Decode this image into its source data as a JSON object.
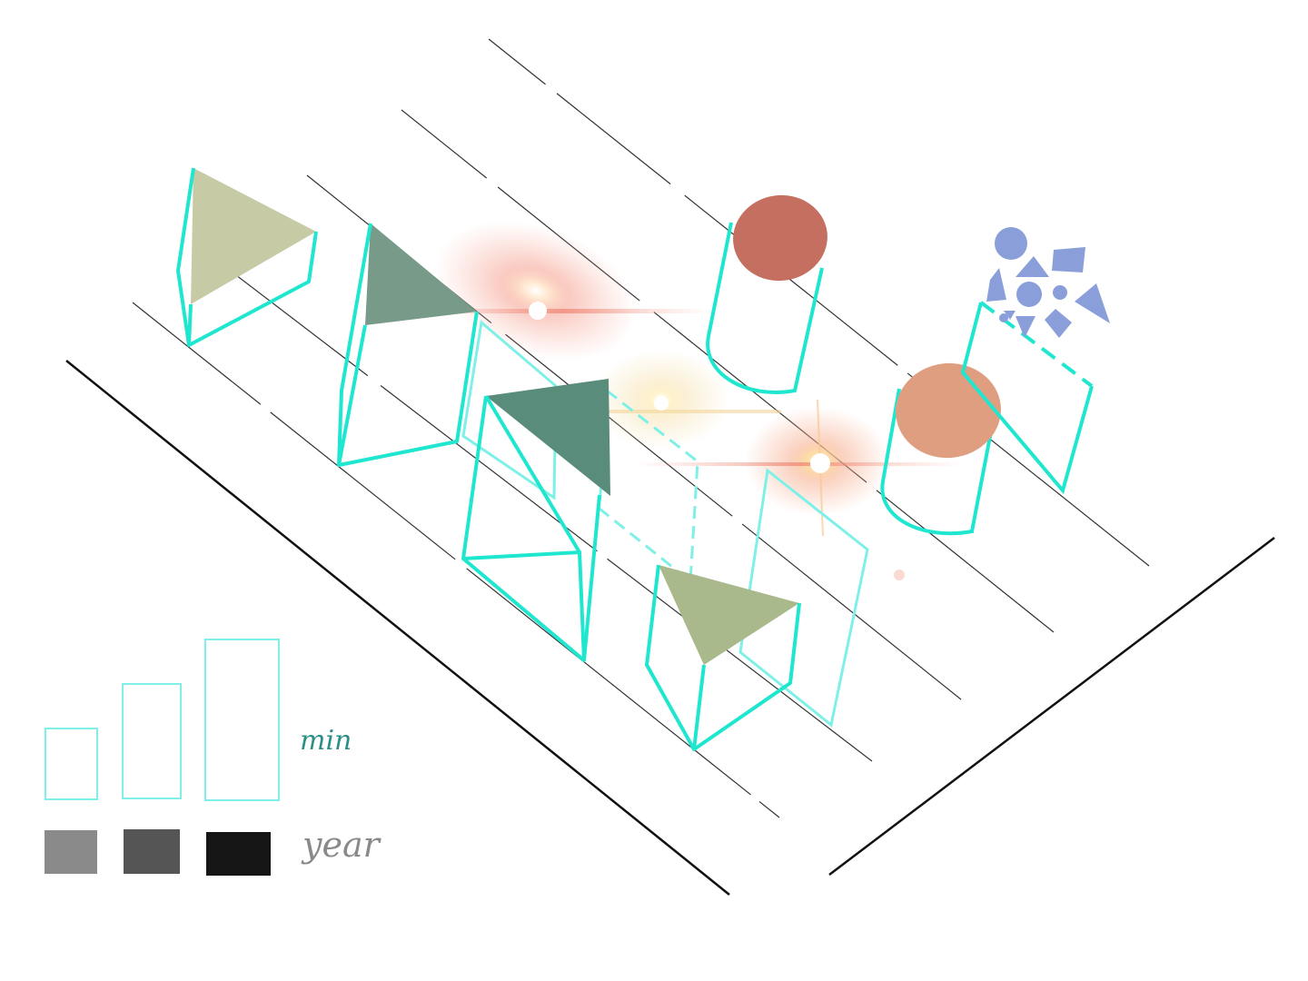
{
  "colors": {
    "background": "#ffffff",
    "outline_cyan": "#1fe6cf",
    "outline_cyan_light": "#7ff0e8",
    "ground_line": "#111111",
    "track_line": "#333333",
    "prism_tops": [
      "#c6cba6",
      "#779a89",
      "#5a8c7b",
      "#a9b98b"
    ],
    "cylinder_tops": [
      "#c46f60",
      "#e09e80"
    ],
    "shape_cluster": "#8a9fd9",
    "year_swatches": [
      "#8a8a8a",
      "#555555",
      "#161616"
    ],
    "min_text": "#2a8f86",
    "year_text": "#8a8a8a"
  },
  "legend": {
    "size_label": "min",
    "shade_label": "year"
  },
  "icons": [
    "triangular-prism-icon",
    "cylinder-icon",
    "shape-cluster-icon",
    "light-flare-icon"
  ]
}
